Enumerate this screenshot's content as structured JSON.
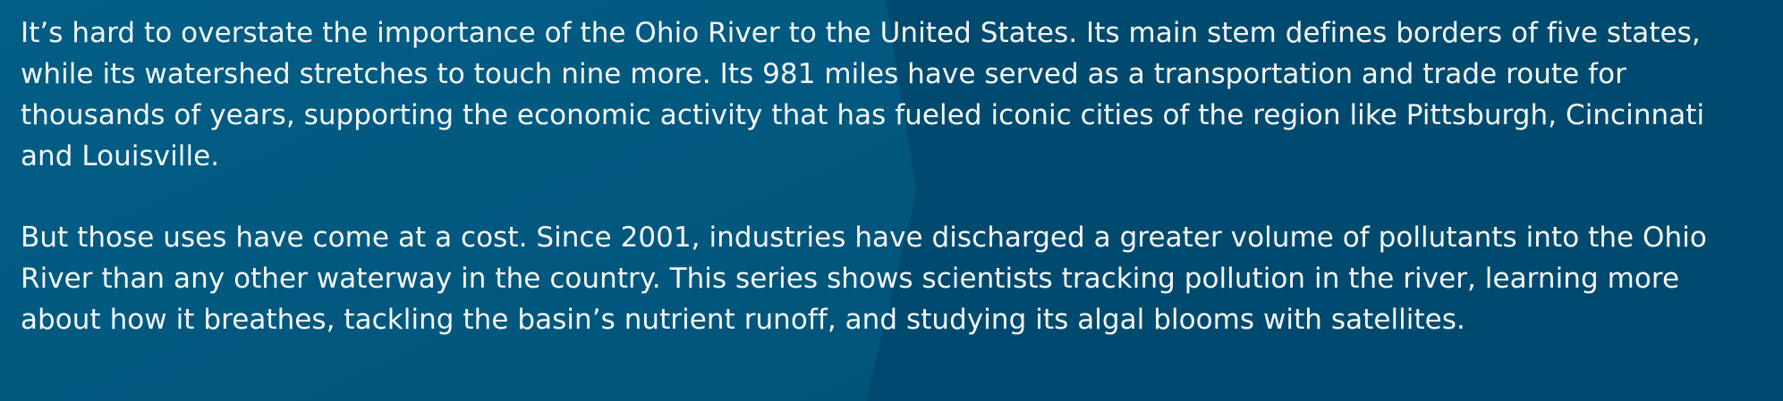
{
  "article": {
    "paragraphs": [
      "It’s hard to overstate the importance of the Ohio River to the United States. Its main stem defines borders of five states, while its watershed stretches to touch nine more. Its 981 miles have served as a transportation and trade route for thousands of years, supporting the economic activity that has fueled iconic cities of the region like Pittsburgh, Cincinnati and Louisville.",
      "But those uses have come at a cost. Since 2001, industries have discharged a greater volume of pollutants into the Ohio River than any other waterway in the country. This series shows scientists tracking pollution in the river, learning more about how it breathes, tackling the basin’s nutrient runoff, and studying its algal blooms with satellites."
    ]
  },
  "colors": {
    "background_left": "#025a82",
    "background_right": "#014a6f",
    "text": "#f4f7f9"
  }
}
